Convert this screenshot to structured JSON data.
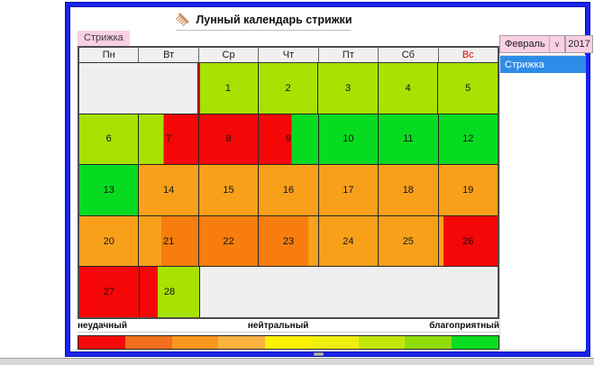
{
  "title": {
    "text": "Лунный календарь стрижки"
  },
  "icons": {
    "title_icon": "comb-icon",
    "month_dropdown_icon": "chevron-down-icon"
  },
  "tab": {
    "label": "Стрижка"
  },
  "month_picker": {
    "value": "Февраль"
  },
  "year_picker": {
    "value": "2017"
  },
  "sidebar_list": {
    "items": [
      {
        "label": "Стрижка",
        "selected": true
      }
    ]
  },
  "calendar": {
    "month": "Февраль",
    "year": "2017",
    "weekday_headers": [
      {
        "label": "Пн",
        "holiday": false
      },
      {
        "label": "Вт",
        "holiday": false
      },
      {
        "label": "Ср",
        "holiday": false
      },
      {
        "label": "Чт",
        "holiday": false
      },
      {
        "label": "Пт",
        "holiday": false
      },
      {
        "label": "Сб",
        "holiday": false
      },
      {
        "label": "Вс",
        "holiday": true
      }
    ],
    "weeks": [
      [
        {
          "empty": true,
          "span": 2
        },
        {
          "day": 1,
          "bands": [
            {
              "c": "red",
              "w": 3
            },
            {
              "c": "chartreuse",
              "w": 97
            }
          ]
        },
        {
          "day": 2,
          "bands": [
            {
              "c": "chartreuse",
              "w": 100
            }
          ]
        },
        {
          "day": 3,
          "bands": [
            {
              "c": "chartreuse",
              "w": 100
            }
          ]
        },
        {
          "day": 4,
          "bands": [
            {
              "c": "chartreuse",
              "w": 100
            }
          ]
        },
        {
          "day": 5,
          "bands": [
            {
              "c": "chartreuse",
              "w": 100
            }
          ]
        }
      ],
      [
        {
          "day": 6,
          "bands": [
            {
              "c": "chartreuse",
              "w": 100
            }
          ]
        },
        {
          "day": 7,
          "bands": [
            {
              "c": "chartreuse",
              "w": 42
            },
            {
              "c": "red",
              "w": 58
            }
          ]
        },
        {
          "day": 8,
          "bands": [
            {
              "c": "red",
              "w": 100
            }
          ]
        },
        {
          "day": 9,
          "bands": [
            {
              "c": "red",
              "w": 55
            },
            {
              "c": "green",
              "w": 45
            }
          ]
        },
        {
          "day": 10,
          "bands": [
            {
              "c": "green",
              "w": 100
            }
          ]
        },
        {
          "day": 11,
          "bands": [
            {
              "c": "green",
              "w": 100
            }
          ]
        },
        {
          "day": 12,
          "bands": [
            {
              "c": "green",
              "w": 100
            }
          ]
        }
      ],
      [
        {
          "day": 13,
          "bands": [
            {
              "c": "green",
              "w": 100
            }
          ]
        },
        {
          "day": 14,
          "bands": [
            {
              "c": "orange",
              "w": 100
            }
          ]
        },
        {
          "day": 15,
          "bands": [
            {
              "c": "orange",
              "w": 100
            }
          ]
        },
        {
          "day": 16,
          "bands": [
            {
              "c": "orange",
              "w": 100
            }
          ]
        },
        {
          "day": 17,
          "bands": [
            {
              "c": "orange",
              "w": 100
            }
          ]
        },
        {
          "day": 18,
          "bands": [
            {
              "c": "orange",
              "w": 100
            }
          ]
        },
        {
          "day": 19,
          "bands": [
            {
              "c": "orange",
              "w": 100
            }
          ]
        }
      ],
      [
        {
          "day": 20,
          "bands": [
            {
              "c": "orange",
              "w": 100
            }
          ]
        },
        {
          "day": 21,
          "bands": [
            {
              "c": "orange",
              "w": 38
            },
            {
              "c": "orange_dark",
              "w": 62
            }
          ]
        },
        {
          "day": 22,
          "bands": [
            {
              "c": "orange_dark",
              "w": 100
            }
          ]
        },
        {
          "day": 23,
          "bands": [
            {
              "c": "orange_dark",
              "w": 83
            },
            {
              "c": "orange",
              "w": 17
            }
          ]
        },
        {
          "day": 24,
          "bands": [
            {
              "c": "orange",
              "w": 100
            }
          ]
        },
        {
          "day": 25,
          "bands": [
            {
              "c": "orange",
              "w": 100
            }
          ]
        },
        {
          "day": 26,
          "bands": [
            {
              "c": "orange",
              "w": 8
            },
            {
              "c": "red",
              "w": 92
            }
          ]
        }
      ],
      [
        {
          "day": 27,
          "bands": [
            {
              "c": "red",
              "w": 100
            }
          ]
        },
        {
          "day": 28,
          "bands": [
            {
              "c": "red",
              "w": 30
            },
            {
              "c": "chartreuse",
              "w": 70
            }
          ]
        },
        {
          "empty": true,
          "span": 5
        }
      ]
    ]
  },
  "legend": {
    "bad": "неудачный",
    "neutral": "нейтральный",
    "good": "благоприятный"
  },
  "scale": {
    "segments": [
      "#f50a0a",
      "#f2701e",
      "#f8981e",
      "#fbb040",
      "#fdf203",
      "#eeee10",
      "#c2e60a",
      "#8edc08",
      "#0bdc1f"
    ]
  },
  "palette": {
    "red": "#f50707",
    "chartreuse": "#a7e203",
    "green": "#07db20",
    "orange": "#f9a01b",
    "orange_dark": "#f67d0e",
    "empty": "#efefef",
    "holiday_text": "#e00505",
    "selection_blue": "#2d8ce8",
    "pink": "#f9cfe3",
    "frame_blue": "#1823ef"
  }
}
